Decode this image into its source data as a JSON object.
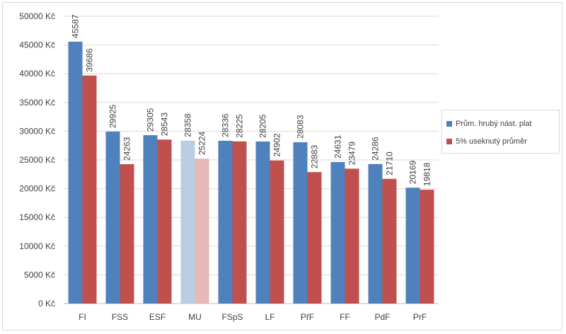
{
  "chart_data": {
    "type": "bar",
    "categories": [
      "FI",
      "FSS",
      "ESF",
      "MU",
      "FSpS",
      "LF",
      "PřF",
      "FF",
      "PdF",
      "PrF"
    ],
    "series": [
      {
        "name": "Prům. hrubý nást. plat",
        "color": "#4f81bd",
        "highlight_color": "#b9cde5",
        "values": [
          45587,
          29925,
          29305,
          28358,
          28336,
          28205,
          28083,
          24631,
          24286,
          20169
        ]
      },
      {
        "name": "5% useknutý průměr",
        "color": "#c0504d",
        "highlight_color": "#e6b9b8",
        "values": [
          39686,
          24263,
          28543,
          25224,
          28225,
          24902,
          22883,
          23479,
          21710,
          19818
        ]
      }
    ],
    "highlight_category": "MU",
    "ylim": [
      0,
      50000
    ],
    "ytick_step": 5000,
    "ytick_suffix": " Kč",
    "xlabel": "",
    "ylabel": "",
    "grid": true,
    "legend": "right",
    "data_labels": true,
    "grid_color": "#d9d9d9"
  }
}
